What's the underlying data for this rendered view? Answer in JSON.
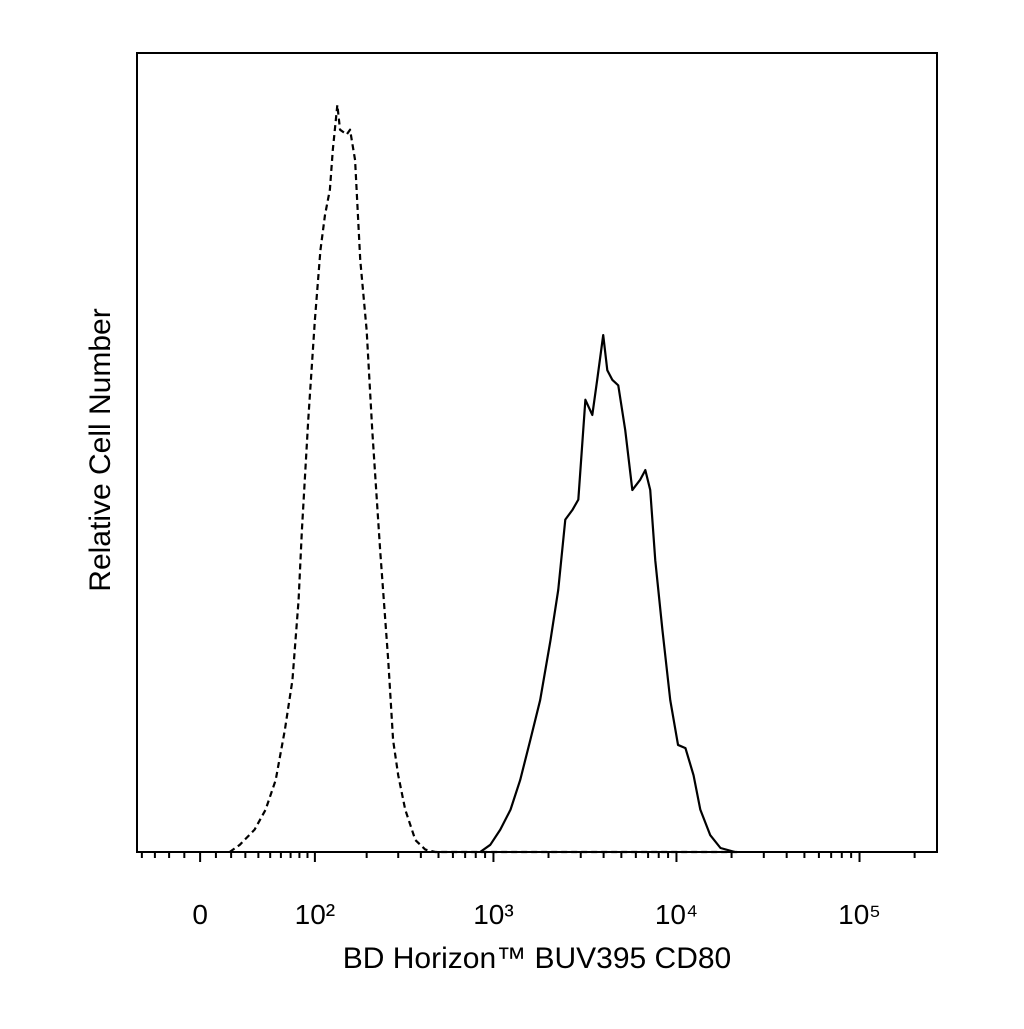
{
  "chart_data": {
    "type": "histogram-overlay",
    "xlabel": "BD Horizon™ BUV395 CD80",
    "ylabel": "Relative Cell Number",
    "xscale": "logicle",
    "xlim": [
      -44,
      265000
    ],
    "ylim": [
      0,
      100
    ],
    "xticks": [
      {
        "value": 0,
        "label": "0"
      },
      {
        "value": 100,
        "label": "10²"
      },
      {
        "value": 1000,
        "label": "10³"
      },
      {
        "value": 10000,
        "label": "10⁴"
      },
      {
        "value": 100000,
        "label": "10⁵"
      }
    ],
    "xminor_ticks": [
      -40,
      -30,
      -20,
      -10,
      10,
      20,
      30,
      40,
      50,
      60,
      70,
      80,
      90,
      200,
      300,
      400,
      500,
      600,
      700,
      800,
      900,
      2000,
      3000,
      4000,
      5000,
      6000,
      7000,
      8000,
      9000,
      20000,
      30000,
      40000,
      50000,
      60000,
      70000,
      80000,
      90000,
      200000
    ],
    "series": [
      {
        "color": "#000000",
        "style": "dashed",
        "x": [
          19,
          26,
          37,
          46,
          55,
          64,
          72,
          79,
          83,
          91,
          100,
          108,
          115,
          123,
          128,
          136,
          141,
          154,
          161,
          172,
          184,
          200,
          215,
          238,
          264,
          281,
          300,
          328,
          373,
          423,
          480,
          22300
        ],
        "values": [
          0,
          0.9,
          2.8,
          5.3,
          9.0,
          15.3,
          21.5,
          31.5,
          40.3,
          54.1,
          66.6,
          75.3,
          79.7,
          82.9,
          87.9,
          93.5,
          90.4,
          89.8,
          90.4,
          86.6,
          74.1,
          65.3,
          52.8,
          37.8,
          24.0,
          14.0,
          9.6,
          5.3,
          1.5,
          0.3,
          0,
          0
        ]
      },
      {
        "color": "#000000",
        "style": "solid",
        "x": [
          846,
          961,
          1090,
          1240,
          1400,
          1590,
          1800,
          2050,
          2260,
          2470,
          2700,
          2910,
          3180,
          3470,
          3690,
          3980,
          4190,
          4460,
          4810,
          5250,
          5740,
          6340,
          6760,
          7190,
          7660,
          8380,
          9250,
          10200,
          11200,
          12400,
          13500,
          15300,
          17400,
          20900
        ],
        "values": [
          0,
          0.9,
          2.8,
          5.3,
          9.0,
          14.0,
          19.0,
          26.5,
          32.8,
          41.6,
          42.8,
          44.1,
          56.6,
          54.7,
          59.1,
          64.7,
          60.3,
          59.1,
          58.4,
          52.8,
          45.3,
          46.6,
          47.8,
          45.3,
          36.5,
          27.8,
          19.0,
          13.4,
          13.0,
          9.6,
          5.3,
          2.1,
          0.5,
          0
        ]
      }
    ]
  }
}
